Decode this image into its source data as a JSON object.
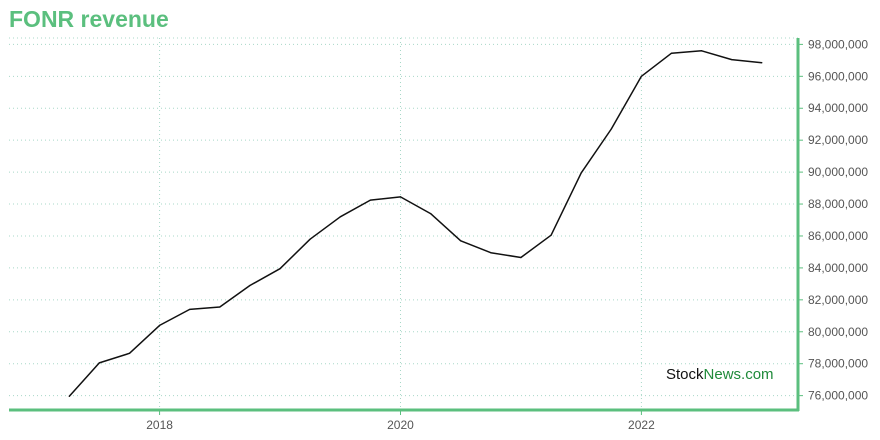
{
  "colors": {
    "title": "#5bbf7e",
    "axis": "#5bbf7e",
    "grid": "#a8d8c8",
    "line": "#111111",
    "watermark_stock": "#111111",
    "watermark_news": "#1f8a3a"
  },
  "watermark": {
    "part1": "Stock",
    "part2": "News",
    "part3": ".com"
  },
  "chart_data": {
    "type": "line",
    "title": "FONR revenue",
    "xlabel": "",
    "ylabel": "",
    "x_ticks": [
      "2018",
      "2020",
      "2022"
    ],
    "x_tick_values": [
      2018.0,
      2020.0,
      2022.0
    ],
    "y_ticks": [
      "76,000,000",
      "78,000,000",
      "80,000,000",
      "82,000,000",
      "84,000,000",
      "86,000,000",
      "88,000,000",
      "90,000,000",
      "92,000,000",
      "94,000,000",
      "96,000,000",
      "98,000,000"
    ],
    "y_tick_values": [
      76000000,
      78000000,
      80000000,
      82000000,
      84000000,
      86000000,
      88000000,
      90000000,
      92000000,
      94000000,
      96000000,
      98000000
    ],
    "xlim": [
      2016.75,
      2023.3
    ],
    "ylim": [
      75100000,
      98400000
    ],
    "grid": true,
    "x": [
      "2017-03-31",
      "2017-06-30",
      "2017-09-30",
      "2017-12-31",
      "2018-03-31",
      "2018-06-30",
      "2018-09-30",
      "2018-12-31",
      "2019-03-31",
      "2019-06-30",
      "2019-09-30",
      "2019-12-31",
      "2020-03-31",
      "2020-06-30",
      "2020-09-30",
      "2020-12-31",
      "2021-03-31",
      "2021-06-30",
      "2021-09-30",
      "2021-12-31",
      "2022-03-31",
      "2022-06-30",
      "2022-09-30",
      "2022-12-31"
    ],
    "x_numeric": [
      2017.25,
      2017.5,
      2017.75,
      2018.0,
      2018.25,
      2018.5,
      2018.75,
      2019.0,
      2019.25,
      2019.5,
      2019.75,
      2020.0,
      2020.25,
      2020.5,
      2020.75,
      2021.0,
      2021.25,
      2021.5,
      2021.75,
      2022.0,
      2022.25,
      2022.5,
      2022.75,
      2023.0
    ],
    "series": [
      {
        "values": [
          75950000,
          78050000,
          78650000,
          80400000,
          81400000,
          81550000,
          82900000,
          83950000,
          85800000,
          87200000,
          88250000,
          88450000,
          87400000,
          85700000,
          84950000,
          84650000,
          86050000,
          89950000,
          92700000,
          96000000,
          97450000,
          97600000,
          97050000,
          96850000
        ]
      }
    ]
  }
}
